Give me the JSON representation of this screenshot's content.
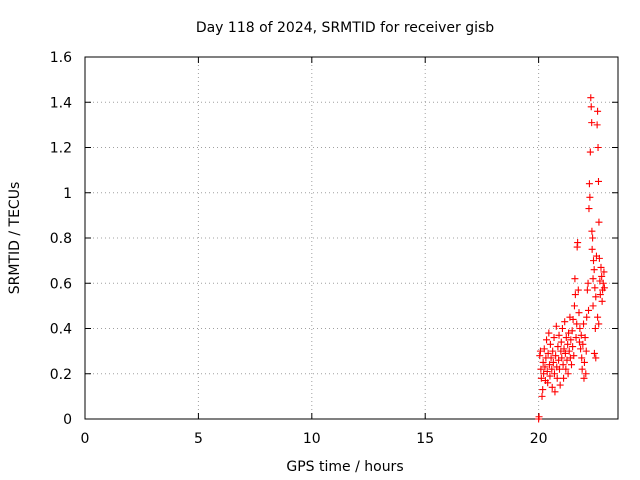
{
  "chart_data": {
    "type": "scatter",
    "title": "Day 118 of 2024, SRMTID for receiver gisb",
    "xlabel": "GPS time / hours",
    "ylabel": "SRMTID / TECUs",
    "xlim": [
      0,
      23.5
    ],
    "ylim": [
      0,
      1.6
    ],
    "xticks": [
      0,
      5,
      10,
      15,
      20
    ],
    "xtick_labels": [
      "0",
      "5",
      "10",
      "15",
      "20"
    ],
    "yticks": [
      0,
      0.2,
      0.4,
      0.6,
      0.8,
      1.0,
      1.2,
      1.4,
      1.6
    ],
    "ytick_labels": [
      "0",
      "0.2",
      "0.4",
      "0.6",
      "0.8",
      "1",
      "1.2",
      "1.4",
      "1.6"
    ],
    "grid": true,
    "marker": "+",
    "color": "#ff0000",
    "series": [
      {
        "name": "SRMTID",
        "points": [
          [
            20.0,
            0.0
          ],
          [
            20.02,
            0.01
          ],
          [
            20.05,
            0.28
          ],
          [
            20.08,
            0.3
          ],
          [
            20.1,
            0.22
          ],
          [
            20.12,
            0.18
          ],
          [
            20.15,
            0.1
          ],
          [
            20.18,
            0.13
          ],
          [
            20.2,
            0.25
          ],
          [
            20.22,
            0.2
          ],
          [
            20.25,
            0.31
          ],
          [
            20.28,
            0.23
          ],
          [
            20.3,
            0.17
          ],
          [
            20.32,
            0.27
          ],
          [
            20.35,
            0.35
          ],
          [
            20.38,
            0.21
          ],
          [
            20.4,
            0.16
          ],
          [
            20.42,
            0.29
          ],
          [
            20.45,
            0.38
          ],
          [
            20.48,
            0.24
          ],
          [
            20.5,
            0.19
          ],
          [
            20.52,
            0.33
          ],
          [
            20.55,
            0.27
          ],
          [
            20.58,
            0.22
          ],
          [
            20.6,
            0.14
          ],
          [
            20.62,
            0.3
          ],
          [
            20.65,
            0.25
          ],
          [
            20.68,
            0.36
          ],
          [
            20.7,
            0.2
          ],
          [
            20.72,
            0.12
          ],
          [
            20.75,
            0.28
          ],
          [
            20.78,
            0.41
          ],
          [
            20.8,
            0.23
          ],
          [
            20.82,
            0.18
          ],
          [
            20.85,
            0.32
          ],
          [
            20.88,
            0.26
          ],
          [
            20.9,
            0.37
          ],
          [
            20.92,
            0.22
          ],
          [
            20.95,
            0.15
          ],
          [
            20.98,
            0.3
          ],
          [
            21.0,
            0.34
          ],
          [
            21.02,
            0.27
          ],
          [
            21.05,
            0.4
          ],
          [
            21.08,
            0.24
          ],
          [
            21.1,
            0.18
          ],
          [
            21.12,
            0.31
          ],
          [
            21.15,
            0.43
          ],
          [
            21.18,
            0.29
          ],
          [
            21.2,
            0.22
          ],
          [
            21.22,
            0.36
          ],
          [
            21.25,
            0.26
          ],
          [
            21.28,
            0.33
          ],
          [
            21.3,
            0.2
          ],
          [
            21.32,
            0.38
          ],
          [
            21.35,
            0.3
          ],
          [
            21.38,
            0.45
          ],
          [
            21.4,
            0.27
          ],
          [
            21.42,
            0.35
          ],
          [
            21.45,
            0.24
          ],
          [
            21.48,
            0.39
          ],
          [
            21.5,
            0.32
          ],
          [
            21.52,
            0.44
          ],
          [
            21.55,
            0.28
          ],
          [
            21.58,
            0.5
          ],
          [
            21.6,
            0.62
          ],
          [
            21.62,
            0.55
          ],
          [
            21.65,
            0.36
          ],
          [
            21.68,
            0.42
          ],
          [
            21.7,
            0.76
          ],
          [
            21.72,
            0.78
          ],
          [
            21.75,
            0.57
          ],
          [
            21.78,
            0.47
          ],
          [
            21.8,
            0.34
          ],
          [
            21.82,
            0.4
          ],
          [
            21.85,
            0.31
          ],
          [
            21.88,
            0.37
          ],
          [
            21.9,
            0.27
          ],
          [
            21.92,
            0.22
          ],
          [
            21.95,
            0.33
          ],
          [
            21.98,
            0.42
          ],
          [
            22.0,
            0.18
          ],
          [
            22.02,
            0.25
          ],
          [
            22.05,
            0.36
          ],
          [
            22.08,
            0.2
          ],
          [
            22.1,
            0.3
          ],
          [
            22.12,
            0.45
          ],
          [
            22.15,
            0.57
          ],
          [
            22.18,
            0.6
          ],
          [
            22.2,
            0.48
          ],
          [
            22.22,
            0.93
          ],
          [
            22.24,
            1.04
          ],
          [
            22.26,
            0.98
          ],
          [
            22.28,
            1.18
          ],
          [
            22.3,
            1.42
          ],
          [
            22.32,
            1.38
          ],
          [
            22.34,
            1.31
          ],
          [
            22.36,
            0.75
          ],
          [
            22.38,
            0.8
          ],
          [
            22.4,
            0.62
          ],
          [
            22.42,
            0.7
          ],
          [
            22.45,
            0.66
          ],
          [
            22.48,
            0.58
          ],
          [
            22.5,
            0.4
          ],
          [
            22.52,
            0.54
          ],
          [
            22.55,
            0.72
          ],
          [
            22.58,
            1.3
          ],
          [
            22.6,
            1.36
          ],
          [
            22.62,
            1.2
          ],
          [
            22.64,
            1.05
          ],
          [
            22.66,
            0.87
          ],
          [
            22.68,
            0.71
          ],
          [
            22.7,
            0.61
          ],
          [
            22.72,
            0.55
          ],
          [
            22.75,
            0.67
          ],
          [
            22.78,
            0.63
          ],
          [
            22.8,
            0.52
          ],
          [
            22.82,
            0.57
          ],
          [
            22.85,
            0.6
          ],
          [
            22.88,
            0.65
          ],
          [
            22.9,
            0.58
          ],
          [
            22.46,
            0.29
          ],
          [
            22.52,
            0.27
          ],
          [
            22.6,
            0.45
          ],
          [
            22.4,
            0.5
          ],
          [
            22.65,
            0.42
          ],
          [
            22.35,
            0.83
          ]
        ]
      }
    ]
  }
}
